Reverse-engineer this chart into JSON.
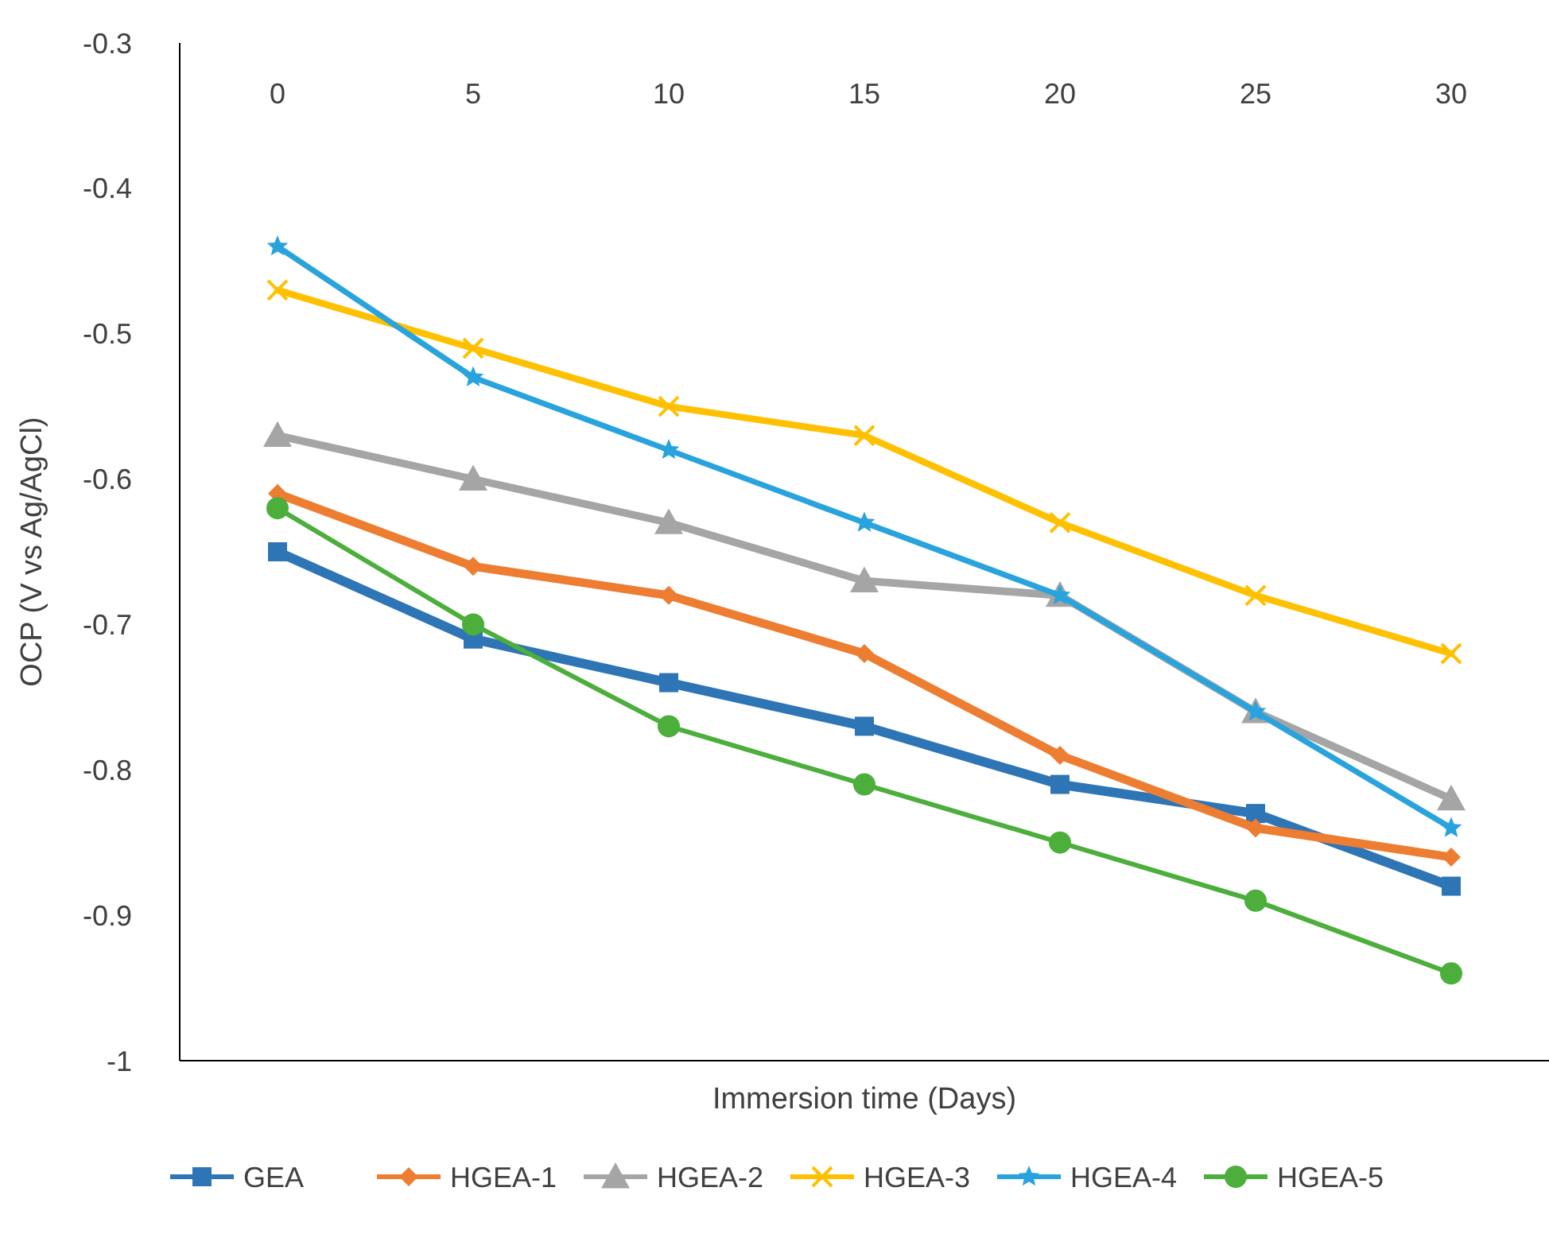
{
  "chart_data": {
    "type": "line",
    "xlabel": "Immersion time (Days)",
    "ylabel": "OCP (V vs Ag/AgCl)",
    "categories": [
      "0",
      "5",
      "10",
      "15",
      "20",
      "25",
      "30"
    ],
    "ylim": [
      -1,
      -0.3
    ],
    "yticks": [
      -1,
      -0.9,
      -0.8,
      -0.7,
      -0.6,
      -0.5,
      -0.4,
      -0.3
    ],
    "grid": false,
    "legend": "bottom",
    "line_style": "solid",
    "series": [
      {
        "name": "GEA",
        "color": "#2e75b6",
        "marker": "square",
        "values": [
          -0.65,
          -0.71,
          -0.74,
          -0.77,
          -0.81,
          -0.83,
          -0.88
        ]
      },
      {
        "name": "HGEA-1",
        "color": "#ed7d31",
        "marker": "diamond",
        "values": [
          -0.61,
          -0.66,
          -0.68,
          -0.72,
          -0.79,
          -0.84,
          -0.86
        ]
      },
      {
        "name": "HGEA-2",
        "color": "#a5a5a5",
        "marker": "triangle",
        "values": [
          -0.57,
          -0.6,
          -0.63,
          -0.67,
          -0.68,
          -0.76,
          -0.82
        ]
      },
      {
        "name": "HGEA-3",
        "color": "#ffc000",
        "marker": "cross",
        "values": [
          -0.47,
          -0.51,
          -0.55,
          -0.57,
          -0.63,
          -0.68,
          -0.72
        ]
      },
      {
        "name": "HGEA-4",
        "color": "#29a3dd",
        "marker": "star",
        "values": [
          -0.44,
          -0.53,
          -0.58,
          -0.63,
          -0.68,
          -0.76,
          -0.84
        ]
      },
      {
        "name": "HGEA-5",
        "color": "#4cae3b",
        "marker": "circle",
        "values": [
          -0.62,
          -0.7,
          -0.77,
          -0.81,
          -0.85,
          -0.89,
          -0.94
        ]
      }
    ]
  }
}
